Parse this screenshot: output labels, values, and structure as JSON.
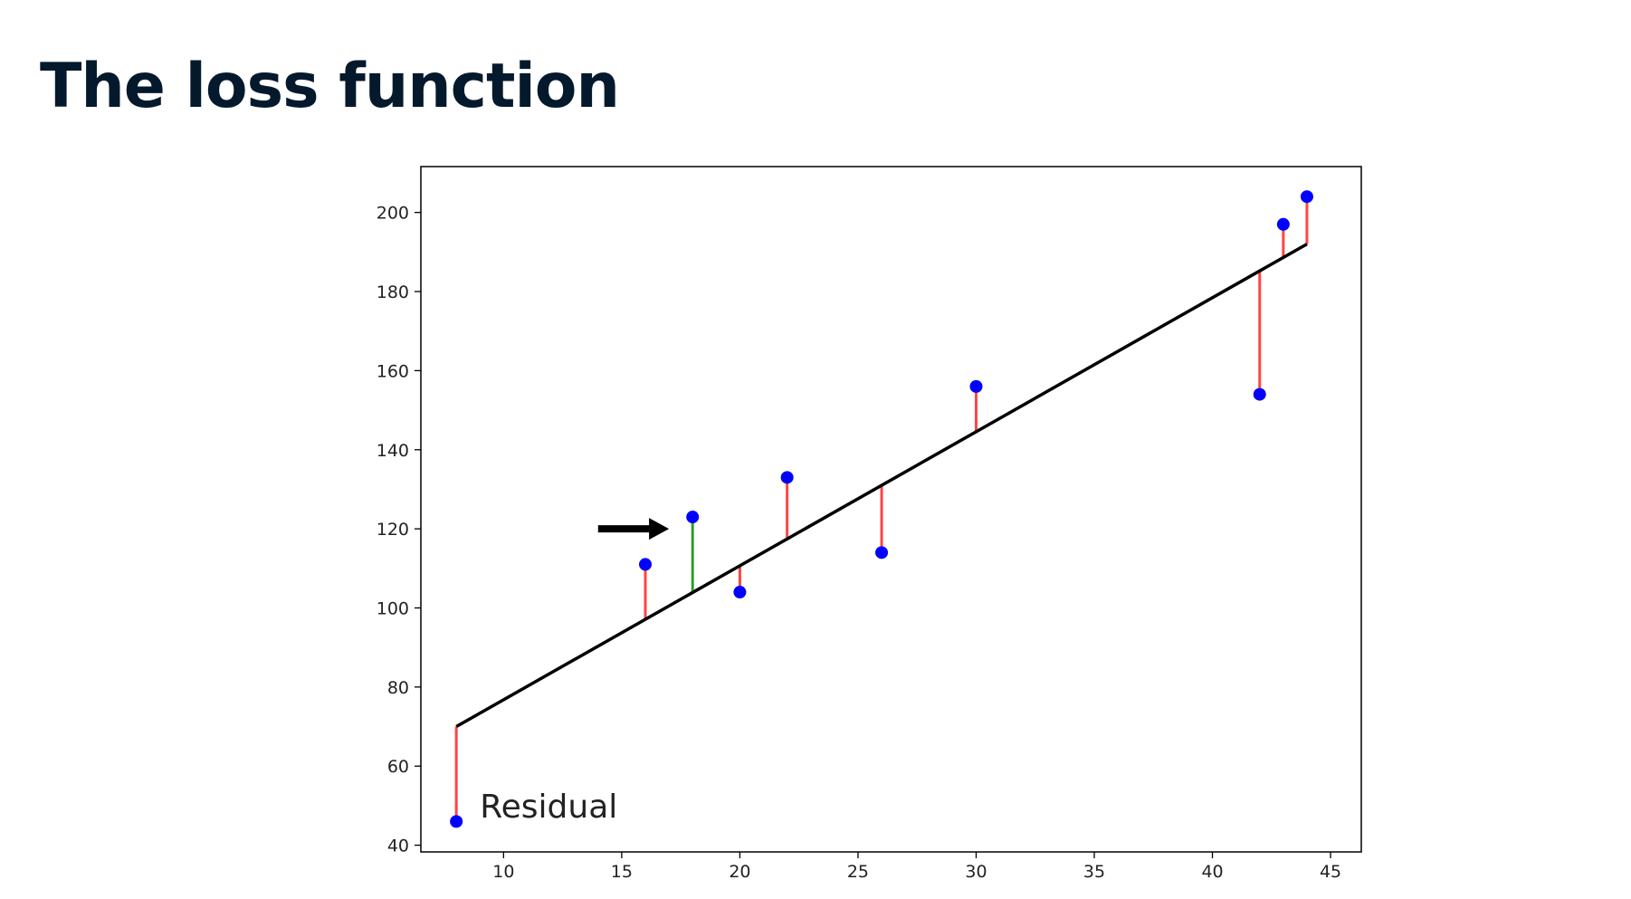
{
  "slide": {
    "title": "The loss function"
  },
  "chart_data": {
    "type": "scatter",
    "title": "",
    "xlabel": "",
    "ylabel": "",
    "xlim": [
      6.5,
      46.3
    ],
    "ylim": [
      38.3,
      211.6
    ],
    "grid": false,
    "xticks": [
      10,
      15,
      20,
      25,
      30,
      35,
      40,
      45
    ],
    "yticks": [
      40,
      60,
      80,
      100,
      120,
      140,
      160,
      180,
      200
    ],
    "points": {
      "x": [
        8,
        16,
        18,
        20,
        22,
        26,
        30,
        42,
        43,
        44
      ],
      "y": [
        46,
        111,
        123,
        104,
        133,
        114,
        156,
        154,
        197,
        204
      ]
    },
    "regression_line": {
      "x": [
        8,
        44
      ],
      "y": [
        70,
        192
      ]
    },
    "highlighted_point_index": 2,
    "colors": {
      "points": "#0000ff",
      "line": "#000000",
      "residual": "#ff4444",
      "highlight_residual": "#2ca02c",
      "arrow": "#000000"
    },
    "annotations": [
      {
        "text": "Residual",
        "x": 9,
        "y": 47
      },
      {
        "type": "arrow",
        "from": [
          14,
          120
        ],
        "to": [
          17,
          120
        ],
        "icon": "right-arrow-icon"
      }
    ]
  }
}
